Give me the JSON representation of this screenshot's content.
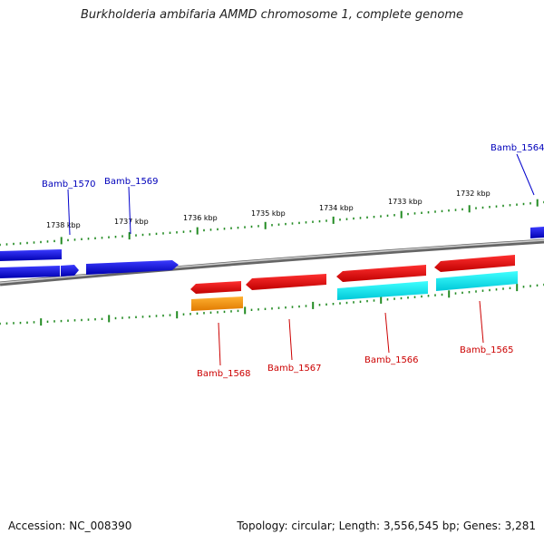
{
  "title": "Burkholderia ambifaria AMMD chromosome 1, complete genome",
  "footer": {
    "accession": "Accession: NC_008390",
    "topology": "Topology: circular; Length: 3,556,545 bp; Genes: 3,281"
  },
  "colors": {
    "backbone": "#888888",
    "tick": "#228b22",
    "forward_gene": "#0000ee",
    "reverse_gene": "#ee0000",
    "cds_cyan": "#00e5ee",
    "cds_orange": "#ff9900",
    "top_label": "#0000bb",
    "bottom_label": "#cc0000"
  },
  "scale_labels": [
    "1738 kbp",
    "1737 kbp",
    "1736 kbp",
    "1735 kbp",
    "1734 kbp",
    "1733 kbp",
    "1732 kbp"
  ],
  "top_genes": [
    {
      "label": "Bamb_1570"
    },
    {
      "label": "Bamb_1569"
    },
    {
      "label": "Bamb_1564"
    }
  ],
  "bottom_genes": [
    {
      "label": "Bamb_1568"
    },
    {
      "label": "Bamb_1567"
    },
    {
      "label": "Bamb_1566"
    },
    {
      "label": "Bamb_1565"
    }
  ]
}
